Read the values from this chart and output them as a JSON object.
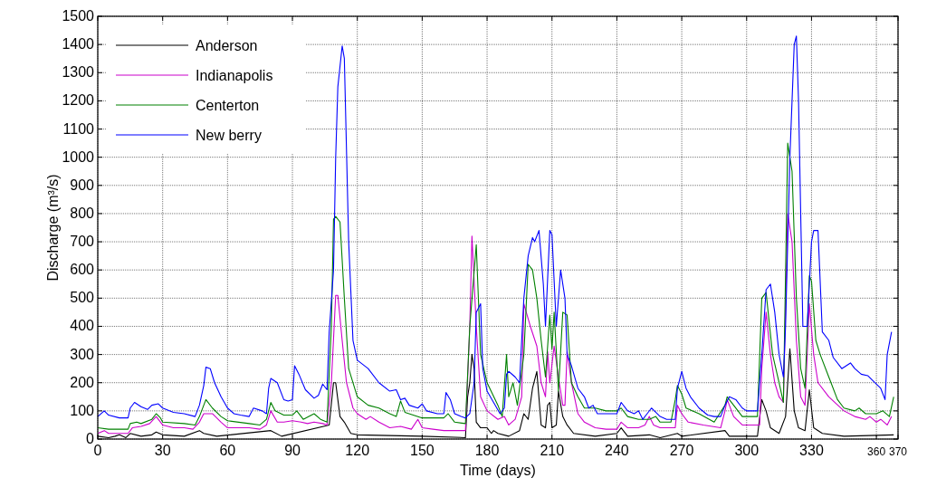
{
  "chart_data": {
    "type": "line",
    "xlabel": "Time (days)",
    "ylabel": "Discharge (m³/s)",
    "xlim": [
      0,
      370
    ],
    "xticks": [
      0,
      30,
      60,
      90,
      120,
      150,
      180,
      210,
      240,
      270,
      300,
      330,
      360,
      370
    ],
    "ylim": [
      0,
      1500
    ],
    "yticks": [
      0,
      100,
      200,
      300,
      400,
      500,
      600,
      700,
      800,
      900,
      1000,
      1100,
      1200,
      1300,
      1400,
      1500
    ],
    "grid": true,
    "legend": "top left",
    "line_style": "solid",
    "marker": "none",
    "series": [
      {
        "name": "Anderson",
        "color": "#000000",
        "x": [
          0,
          5,
          8,
          10,
          13,
          15,
          20,
          25,
          27,
          30,
          40,
          47,
          49,
          55,
          80,
          85,
          107,
          109,
          110,
          112,
          114,
          117,
          120,
          150,
          170,
          171,
          172,
          173,
          174,
          175,
          177,
          180,
          182,
          183,
          185,
          190,
          195,
          197,
          199,
          201,
          203,
          205,
          207,
          208,
          209,
          210,
          212,
          213,
          215,
          217,
          220,
          230,
          240,
          242,
          245,
          255,
          260,
          268,
          270,
          290,
          292,
          305,
          307,
          309,
          311,
          315,
          318,
          320,
          322,
          324,
          327,
          329,
          331,
          335,
          345,
          368
        ],
        "values": [
          10,
          5,
          10,
          15,
          5,
          20,
          10,
          15,
          25,
          15,
          10,
          30,
          20,
          10,
          30,
          10,
          50,
          200,
          200,
          80,
          60,
          20,
          15,
          10,
          5,
          150,
          200,
          300,
          250,
          60,
          40,
          40,
          20,
          30,
          20,
          10,
          30,
          90,
          70,
          180,
          240,
          50,
          40,
          120,
          130,
          40,
          50,
          170,
          80,
          50,
          20,
          10,
          20,
          40,
          10,
          15,
          5,
          20,
          10,
          30,
          10,
          10,
          140,
          100,
          40,
          20,
          80,
          320,
          100,
          40,
          30,
          175,
          40,
          20,
          10,
          15
        ]
      },
      {
        "name": "Indianapolis",
        "color": "#cc00cc",
        "x": [
          0,
          3,
          5,
          10,
          14,
          16,
          20,
          24,
          27,
          30,
          35,
          40,
          44,
          47,
          49,
          53,
          57,
          60,
          65,
          70,
          75,
          78,
          80,
          83,
          86,
          90,
          94,
          97,
          100,
          104,
          106,
          108,
          110,
          111,
          113,
          115,
          118,
          120,
          124,
          126,
          130,
          135,
          140,
          145,
          148,
          150,
          155,
          160,
          165,
          170,
          172,
          173,
          175,
          177,
          180,
          185,
          188,
          190,
          193,
          196,
          197,
          200,
          203,
          205,
          207,
          208,
          209,
          211,
          213,
          215,
          216,
          217,
          219,
          222,
          225,
          230,
          235,
          240,
          242,
          245,
          248,
          250,
          253,
          255,
          257,
          260,
          267,
          268,
          270,
          273,
          280,
          288,
          290,
          291,
          294,
          298,
          306,
          307,
          309,
          311,
          313,
          315,
          317,
          319,
          321,
          323,
          325,
          327,
          329,
          331,
          333,
          338,
          345,
          350,
          355,
          357,
          360,
          362,
          365,
          367
        ],
        "values": [
          20,
          30,
          20,
          20,
          20,
          40,
          45,
          55,
          80,
          50,
          40,
          40,
          35,
          60,
          90,
          90,
          60,
          40,
          40,
          40,
          35,
          50,
          100,
          60,
          60,
          65,
          60,
          55,
          60,
          55,
          50,
          200,
          510,
          510,
          350,
          200,
          110,
          90,
          70,
          80,
          60,
          40,
          45,
          35,
          70,
          40,
          35,
          30,
          30,
          30,
          400,
          720,
          400,
          150,
          100,
          70,
          80,
          50,
          70,
          150,
          480,
          400,
          330,
          200,
          150,
          310,
          200,
          330,
          220,
          120,
          120,
          310,
          200,
          90,
          60,
          40,
          35,
          35,
          60,
          40,
          40,
          40,
          50,
          80,
          50,
          40,
          40,
          120,
          90,
          60,
          50,
          40,
          100,
          140,
          80,
          50,
          50,
          250,
          450,
          300,
          200,
          150,
          130,
          800,
          700,
          350,
          150,
          120,
          480,
          300,
          200,
          150,
          100,
          80,
          70,
          80,
          60,
          70,
          50,
          80
        ]
      },
      {
        "name": "Centerton",
        "color": "#008000",
        "x": [
          0,
          5,
          10,
          14,
          15,
          18,
          20,
          25,
          27,
          29,
          30,
          40,
          45,
          47,
          49,
          50,
          53,
          57,
          60,
          70,
          75,
          78,
          80,
          82,
          86,
          90,
          92,
          95,
          100,
          103,
          106,
          108,
          109,
          110,
          112,
          114,
          116,
          120,
          125,
          130,
          135,
          138,
          140,
          142,
          150,
          155,
          160,
          162,
          165,
          170,
          172,
          175,
          177,
          180,
          185,
          187,
          189,
          190,
          192,
          194,
          197,
          199,
          201,
          203,
          205,
          207,
          209,
          210,
          211,
          213,
          215,
          217,
          219,
          222,
          225,
          230,
          235,
          240,
          242,
          245,
          250,
          255,
          258,
          260,
          265,
          267,
          268,
          270,
          272,
          278,
          285,
          290,
          291,
          294,
          298,
          305,
          307,
          309,
          312,
          315,
          317,
          319,
          321,
          323,
          325,
          327,
          329,
          330,
          332,
          334,
          338,
          342,
          345,
          350,
          352,
          355,
          360,
          363,
          366,
          368
        ],
        "values": [
          40,
          35,
          35,
          35,
          55,
          60,
          55,
          70,
          90,
          75,
          60,
          55,
          50,
          80,
          120,
          140,
          110,
          80,
          65,
          55,
          50,
          70,
          130,
          100,
          85,
          85,
          100,
          70,
          90,
          70,
          60,
          400,
          780,
          790,
          770,
          500,
          250,
          150,
          120,
          110,
          90,
          80,
          135,
          95,
          75,
          75,
          75,
          90,
          60,
          55,
          400,
          690,
          300,
          200,
          120,
          80,
          300,
          150,
          200,
          120,
          300,
          620,
          600,
          500,
          350,
          220,
          440,
          320,
          450,
          170,
          450,
          440,
          200,
          150,
          110,
          110,
          100,
          100,
          110,
          80,
          70,
          70,
          80,
          60,
          60,
          140,
          190,
          160,
          110,
          90,
          60,
          120,
          150,
          120,
          80,
          80,
          500,
          520,
          300,
          200,
          130,
          1050,
          950,
          500,
          250,
          180,
          580,
          560,
          350,
          300,
          220,
          140,
          110,
          100,
          110,
          90,
          90,
          100,
          80,
          150
        ]
      },
      {
        "name": "New berry",
        "color": "#0000ff",
        "x": [
          0,
          3,
          5,
          10,
          14,
          15,
          17,
          20,
          23,
          25,
          28,
          30,
          35,
          40,
          45,
          47,
          49,
          50,
          52,
          54,
          57,
          60,
          63,
          66,
          70,
          72,
          76,
          78,
          79,
          80,
          83,
          86,
          88,
          90,
          91,
          93,
          96,
          100,
          102,
          104,
          106,
          107,
          109,
          110,
          111,
          113,
          114,
          116,
          118,
          120,
          125,
          130,
          135,
          138,
          140,
          142,
          144,
          148,
          150,
          152,
          157,
          160,
          161,
          163,
          165,
          168,
          170,
          172,
          174,
          175,
          177,
          178,
          180,
          183,
          186,
          188,
          189,
          190,
          193,
          195,
          197,
          199,
          201,
          202,
          204,
          206,
          207,
          209,
          210,
          212,
          214,
          216,
          217,
          219,
          222,
          225,
          227,
          229,
          231,
          233,
          238,
          240,
          242,
          245,
          248,
          250,
          252,
          254,
          256,
          258,
          260,
          263,
          267,
          268,
          270,
          272,
          274,
          278,
          282,
          285,
          288,
          290,
          292,
          295,
          298,
          300,
          305,
          307,
          309,
          311,
          313,
          315,
          317,
          318,
          320,
          322,
          323,
          324,
          326,
          328,
          330,
          331,
          333,
          335,
          338,
          340,
          344,
          348,
          350,
          353,
          356,
          358,
          362,
          364,
          365,
          367
        ],
        "values": [
          80,
          100,
          85,
          75,
          75,
          110,
          130,
          115,
          105,
          120,
          125,
          110,
          95,
          90,
          80,
          120,
          190,
          255,
          250,
          200,
          150,
          110,
          90,
          85,
          80,
          110,
          100,
          90,
          180,
          215,
          200,
          140,
          135,
          140,
          260,
          230,
          175,
          145,
          155,
          195,
          175,
          380,
          600,
          1000,
          1250,
          1395,
          1350,
          700,
          350,
          280,
          250,
          200,
          170,
          175,
          140,
          145,
          120,
          110,
          125,
          100,
          90,
          90,
          165,
          140,
          90,
          80,
          75,
          90,
          200,
          450,
          480,
          250,
          170,
          130,
          90,
          110,
          230,
          240,
          220,
          200,
          500,
          650,
          715,
          700,
          740,
          550,
          400,
          740,
          725,
          400,
          600,
          500,
          300,
          260,
          180,
          150,
          110,
          120,
          90,
          90,
          90,
          90,
          130,
          100,
          90,
          100,
          70,
          90,
          110,
          95,
          80,
          70,
          70,
          180,
          240,
          180,
          150,
          110,
          85,
          80,
          80,
          120,
          150,
          140,
          110,
          100,
          100,
          300,
          530,
          550,
          450,
          300,
          220,
          400,
          1000,
          1400,
          1430,
          1200,
          400,
          400,
          700,
          740,
          740,
          380,
          350,
          290,
          250,
          270,
          250,
          230,
          225,
          210,
          180,
          140,
          300,
          380
        ]
      }
    ]
  }
}
